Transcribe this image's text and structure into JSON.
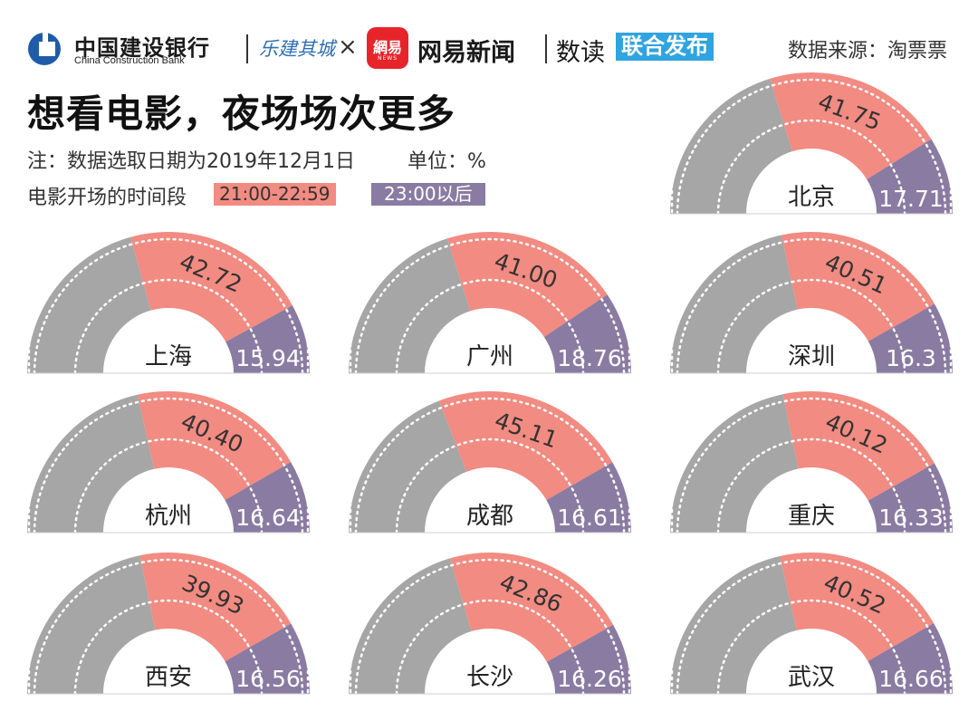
{
  "header": {
    "bank_name_cn": "中国建设银行",
    "bank_name_en": "China Construction Bank",
    "partner_brand": "乐建其城",
    "cross": "×",
    "netease_logo_text": "網易",
    "netease_logo_sub": "NEWS",
    "netease_news": "网易新闻",
    "shudu": "数读",
    "joint_release": "联合发布",
    "source": "数据来源：淘票票"
  },
  "title": "想看电影，夜场场次更多",
  "note": "注：数据选取日期为2019年12月1日",
  "unit": "单位：%",
  "legend": {
    "label": "电影开场的时间段",
    "items": [
      {
        "name": "21:00-22:59",
        "color": "#f28b82"
      },
      {
        "name": "23:00以后",
        "color": "#8a7ba3"
      }
    ]
  },
  "colors": {
    "other": "#a6a6a6",
    "slot_2100_2259": "#f28b82",
    "slot_after_2300": "#8a7ba3"
  },
  "chart_data": {
    "type": "pie",
    "subtype": "semicircle-donut",
    "series": [
      "21:00-22:59",
      "23:00以后"
    ],
    "cities": [
      {
        "city": "北京",
        "values": [
          41.75,
          17.71
        ],
        "labels": [
          "41.75",
          "17.71"
        ]
      },
      {
        "city": "上海",
        "values": [
          42.72,
          15.94
        ],
        "labels": [
          "42.72",
          "15.94"
        ]
      },
      {
        "city": "广州",
        "values": [
          41.0,
          18.76
        ],
        "labels": [
          "41.00",
          "18.76"
        ]
      },
      {
        "city": "深圳",
        "values": [
          40.51,
          16.3
        ],
        "labels": [
          "40.51",
          "16.3"
        ]
      },
      {
        "city": "杭州",
        "values": [
          40.4,
          16.64
        ],
        "labels": [
          "40.40",
          "16.64"
        ]
      },
      {
        "city": "成都",
        "values": [
          45.11,
          16.61
        ],
        "labels": [
          "45.11",
          "16.61"
        ]
      },
      {
        "city": "重庆",
        "values": [
          40.12,
          16.33
        ],
        "labels": [
          "40.12",
          "16.33"
        ]
      },
      {
        "city": "西安",
        "values": [
          39.93,
          16.56
        ],
        "labels": [
          "39.93",
          "16.56"
        ]
      },
      {
        "city": "长沙",
        "values": [
          42.86,
          16.26
        ],
        "labels": [
          "42.86",
          "16.26"
        ]
      },
      {
        "city": "武汉",
        "values": [
          40.52,
          16.66
        ],
        "labels": [
          "40.52",
          "16.66"
        ]
      }
    ]
  }
}
